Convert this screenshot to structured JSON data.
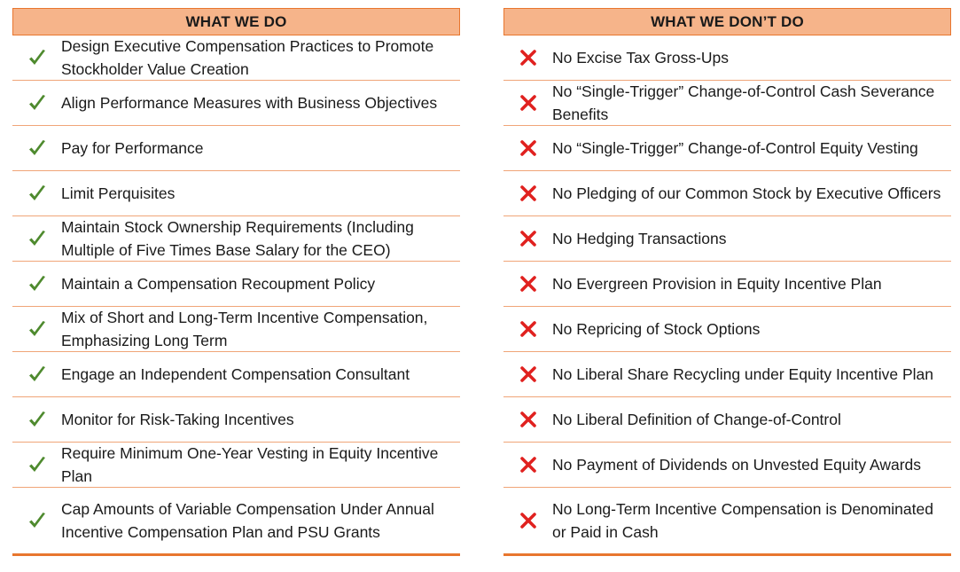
{
  "left": {
    "header": "WHAT WE DO",
    "items": [
      "Design Executive Compensation Practices to Promote Stockholder Value Creation",
      "Align Performance Measures with Business Objectives",
      "Pay for Performance",
      "Limit Perquisites",
      "Maintain Stock Ownership Requirements (Including Multiple of Five Times Base Salary for the CEO)",
      "Maintain a Compensation Recoupment Policy",
      "Mix of Short and Long-Term Incentive Compensation, Emphasizing Long Term",
      "Engage an Independent Compensation Consultant",
      "Monitor for Risk-Taking Incentives",
      "Require Minimum One-Year Vesting in Equity Incentive Plan",
      "Cap Amounts of Variable Compensation Under Annual Incentive Compensation Plan and PSU Grants"
    ],
    "icon": "check-icon"
  },
  "right": {
    "header": "WHAT WE DON’T DO",
    "items": [
      "No Excise Tax Gross-Ups",
      "No “Single-Trigger” Change-of-Control Cash Severance Benefits",
      "No “Single-Trigger” Change-of-Control Equity Vesting",
      "No Pledging of our Common Stock by Executive Officers",
      "No Hedging Transactions",
      "No Evergreen Provision in Equity Incentive Plan",
      "No Repricing of Stock Options",
      "No Liberal Share Recycling under Equity Incentive Plan",
      "No Liberal Definition of Change-of-Control",
      "No Payment of Dividends on Unvested Equity Awards",
      "No Long-Term Incentive Compensation is Denominated or Paid in Cash"
    ],
    "icon": "x-icon"
  },
  "colors": {
    "header_fill": "#f6b48a",
    "rule": "#e8762e",
    "check": "#4e8a2e",
    "cross": "#e0211f"
  }
}
